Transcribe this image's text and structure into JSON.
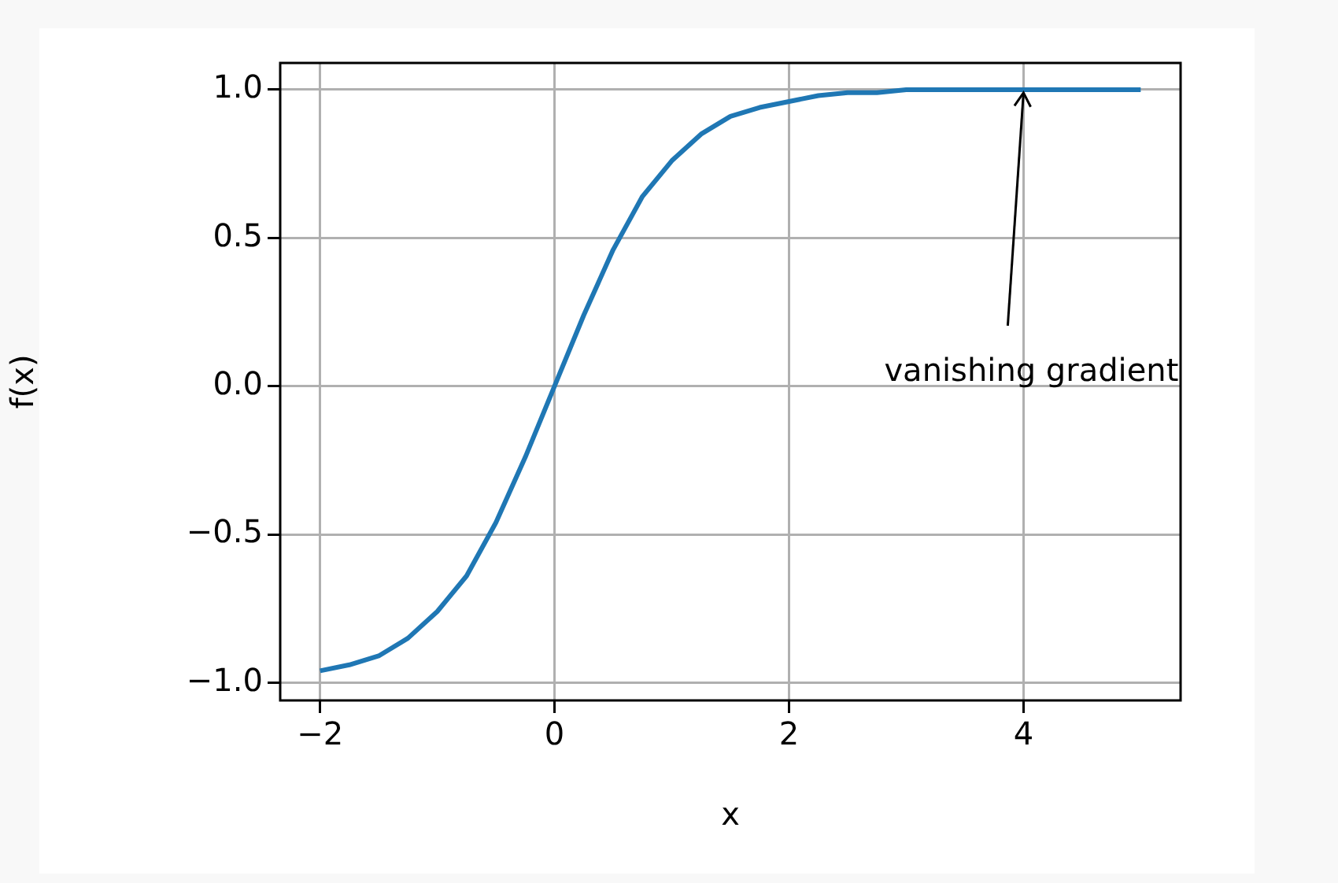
{
  "chart_data": {
    "type": "line",
    "xlabel": "x",
    "ylabel": "f(x)",
    "x": [
      -2,
      -1.75,
      -1.5,
      -1.25,
      -1,
      -0.75,
      -0.5,
      -0.25,
      0,
      0.25,
      0.5,
      0.75,
      1,
      1.25,
      1.5,
      1.75,
      2,
      2.25,
      2.5,
      2.75,
      3,
      3.5,
      4,
      4.5,
      5
    ],
    "series": [
      {
        "color": "#1f77b4",
        "values": [
          -0.96,
          -0.94,
          -0.91,
          -0.85,
          -0.76,
          -0.64,
          -0.46,
          -0.24,
          0,
          0.24,
          0.46,
          0.64,
          0.76,
          0.85,
          0.91,
          0.94,
          0.96,
          0.98,
          0.99,
          0.99,
          1,
          1,
          1,
          1,
          1
        ]
      }
    ],
    "xlim": [
      -2.34,
      5.34
    ],
    "ylim": [
      -1.06,
      1.09
    ],
    "xticks": [
      {
        "value": -2,
        "label": "−2"
      },
      0,
      2,
      4
    ],
    "yticks": [
      {
        "value": -1,
        "label": "−1.0"
      },
      {
        "value": -0.5,
        "label": "−0.5"
      },
      {
        "value": 0,
        "label": "0.0"
      },
      {
        "value": 0.5,
        "label": "0.5"
      },
      {
        "value": 1,
        "label": "1.0"
      }
    ],
    "grid": true,
    "marker": "none",
    "line_style": "solid",
    "legend": false,
    "annotations": [
      {
        "text": "vanishing gradient",
        "x": 4,
        "y": 1
      }
    ]
  }
}
